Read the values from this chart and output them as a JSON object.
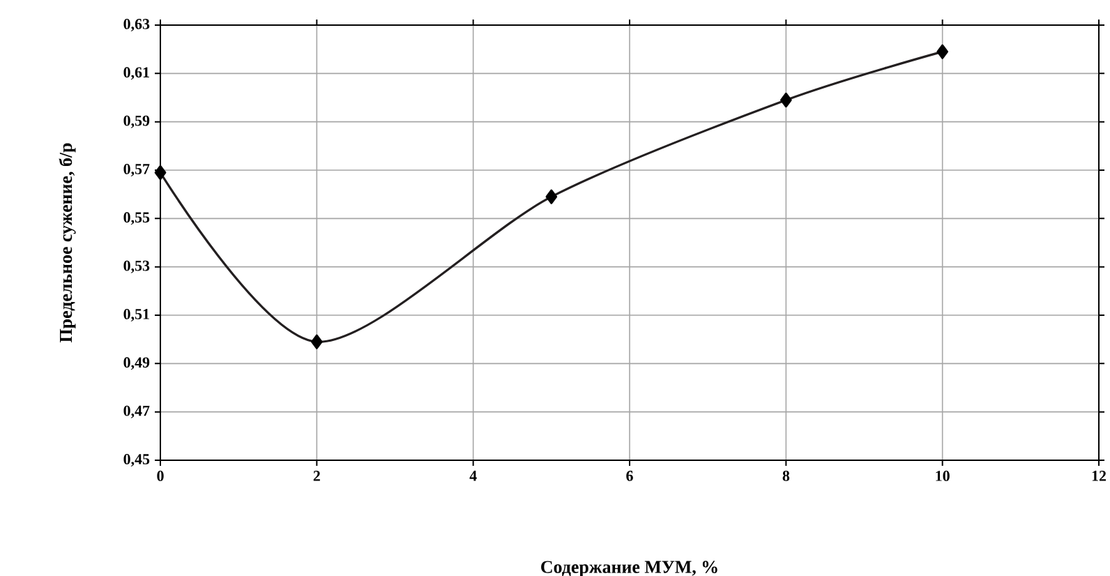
{
  "chart_data": {
    "type": "line",
    "xlabel": "Содержание МУМ, %",
    "ylabel": "Предельное сужение, б/р",
    "x": [
      0,
      2,
      5,
      8,
      10
    ],
    "series": [
      {
        "color": "#231f20",
        "values": [
          0.569,
          0.499,
          0.559,
          0.599,
          0.619
        ]
      }
    ],
    "xlim": [
      0,
      12
    ],
    "xticks": [
      0,
      2,
      4,
      6,
      8,
      10,
      12
    ],
    "ylim": [
      0.45,
      0.63
    ],
    "yticks": [
      {
        "value": 0.45,
        "label": "0,45"
      },
      {
        "value": 0.47,
        "label": "0,47"
      },
      {
        "value": 0.49,
        "label": "0,49"
      },
      {
        "value": 0.51,
        "label": "0,51"
      },
      {
        "value": 0.53,
        "label": "0,53"
      },
      {
        "value": 0.55,
        "label": "0,55"
      },
      {
        "value": 0.57,
        "label": "0,57"
      },
      {
        "value": 0.59,
        "label": "0,59"
      },
      {
        "value": 0.61,
        "label": "0,61"
      },
      {
        "value": 0.63,
        "label": "0,63"
      }
    ],
    "grid": true,
    "marker": "diamond",
    "line_style": "solid"
  }
}
